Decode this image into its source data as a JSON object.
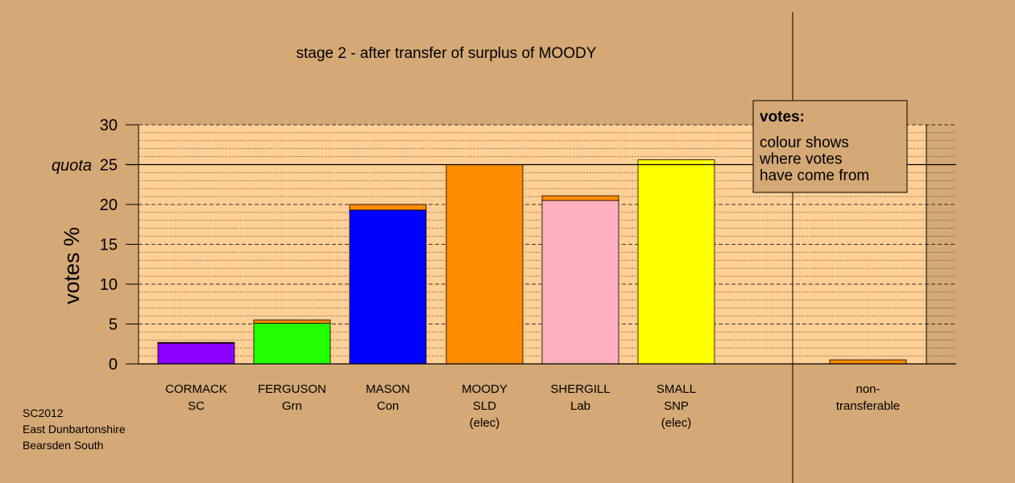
{
  "chart_data": {
    "type": "bar",
    "title": "stage 2 - after transfer of surplus of MOODY",
    "ylabel": "votes %",
    "ylim": [
      0,
      30
    ],
    "yticks": [
      0,
      5,
      10,
      15,
      20,
      25,
      30
    ],
    "quota": 25,
    "quota_label": "quota",
    "categories": [
      {
        "lines": [
          "CORMACK",
          "SC"
        ]
      },
      {
        "lines": [
          "FERGUSON",
          "Grn"
        ]
      },
      {
        "lines": [
          "MASON",
          "Con"
        ]
      },
      {
        "lines": [
          "MOODY",
          "SLD",
          "(elec)"
        ]
      },
      {
        "lines": [
          "SHERGILL",
          "Lab"
        ]
      },
      {
        "lines": [
          "SMALL",
          "SNP",
          "(elec)"
        ]
      },
      {
        "lines": [
          "non-",
          "transferable"
        ]
      }
    ],
    "series": [
      {
        "colour": "#8B00FF",
        "values": [
          2.6,
          5.1,
          19.3,
          25.0,
          20.5,
          25.6,
          0
        ]
      },
      {
        "colour": "#FF8C00",
        "values": [
          0.1,
          0.4,
          0.7,
          0,
          0.6,
          0,
          0.5
        ]
      }
    ],
    "bar_colours": [
      "#8B00FF",
      "#22FF00",
      "#0000FF",
      "#FF8C00",
      "#FFB0C0",
      "#FFFF00",
      "#FF8C00"
    ],
    "transfer_colour": "#FF8C00",
    "legend": {
      "title": "votes:",
      "lines": [
        "colour shows",
        "where votes",
        "have come from"
      ],
      "placement": "top-right"
    }
  },
  "footer": {
    "lines": [
      "SC2012",
      "East Dunbartonshire",
      "Bearsden South"
    ]
  }
}
